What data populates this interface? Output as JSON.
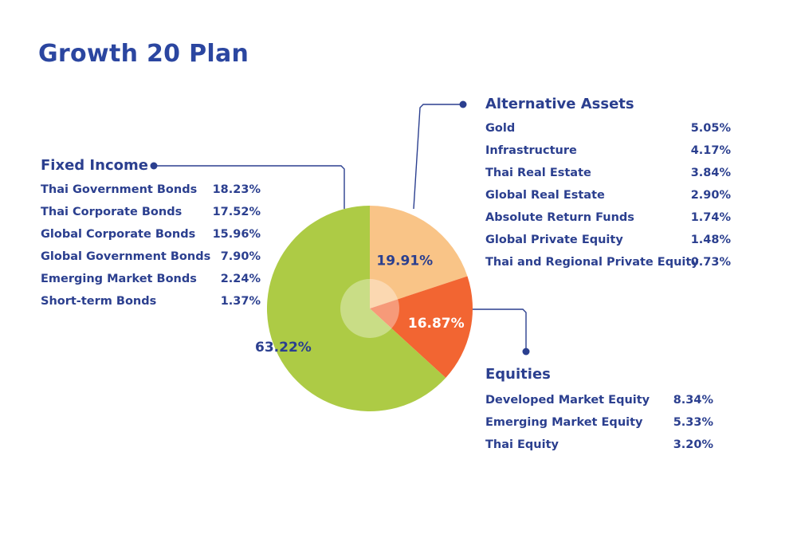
{
  "title": "Growth 20 Plan",
  "colors": {
    "fixed_income": "#adcb45",
    "alternative_assets": "#f9c487",
    "equities": "#f26532",
    "text": "#2b3f8f",
    "connector": "#2b3f8f"
  },
  "chart_data": {
    "type": "pie",
    "slices": [
      {
        "name": "Fixed Income",
        "value": 63.22,
        "label": "63.22%"
      },
      {
        "name": "Alternative Assets",
        "value": 19.91,
        "label": "19.91%"
      },
      {
        "name": "Equities",
        "value": 16.87,
        "label": "16.87%"
      }
    ],
    "groups": {
      "fixed_income": {
        "title": "Fixed Income",
        "items": [
          {
            "label": "Thai Government Bonds",
            "value": "18.23%"
          },
          {
            "label": "Thai Corporate Bonds",
            "value": "17.52%"
          },
          {
            "label": "Global Corporate Bonds",
            "value": "15.96%"
          },
          {
            "label": "Global Government Bonds",
            "value": "7.90%"
          },
          {
            "label": "Emerging Market Bonds",
            "value": "2.24%"
          },
          {
            "label": "Short-term Bonds",
            "value": "1.37%"
          }
        ]
      },
      "alternative_assets": {
        "title": "Alternative Assets",
        "items": [
          {
            "label": "Gold",
            "value": "5.05%"
          },
          {
            "label": "Infrastructure",
            "value": "4.17%"
          },
          {
            "label": "Thai Real Estate",
            "value": "3.84%"
          },
          {
            "label": "Global Real Estate",
            "value": "2.90%"
          },
          {
            "label": "Absolute Return Funds",
            "value": "1.74%"
          },
          {
            "label": "Global Private Equity",
            "value": "1.48%"
          },
          {
            "label": "Thai and Regional Private Equity",
            "value": "0.73%"
          }
        ]
      },
      "equities": {
        "title": "Equities",
        "items": [
          {
            "label": "Developed Market Equity",
            "value": "8.34%"
          },
          {
            "label": "Emerging Market Equity",
            "value": "5.33%"
          },
          {
            "label": "Thai Equity",
            "value": "3.20%"
          }
        ]
      }
    }
  }
}
